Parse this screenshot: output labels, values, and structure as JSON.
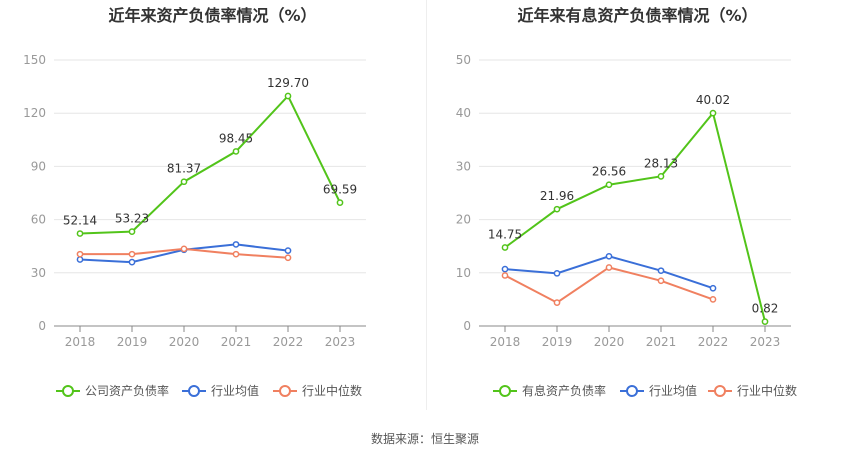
{
  "footer": "数据来源：恒生聚源",
  "colors": {
    "main": "#52c41a",
    "avg": "#3a6fd8",
    "median": "#f08060",
    "grid": "#e6e6e6",
    "axis": "#999999",
    "label": "#333333"
  },
  "chart_data": [
    {
      "type": "line",
      "title": "近年来资产负债率情况（%）",
      "categories": [
        "2018",
        "2019",
        "2020",
        "2021",
        "2022",
        "2023"
      ],
      "ylim": [
        0,
        150
      ],
      "yticks": [
        0,
        30,
        60,
        90,
        120,
        150
      ],
      "xlabel": "",
      "ylabel": "",
      "series": [
        {
          "name": "公司资产负债率",
          "values": [
            52.14,
            53.23,
            81.37,
            98.45,
            129.7,
            69.59
          ],
          "labels": [
            "52.14",
            "53.23",
            "81.37",
            "98.45",
            "129.70",
            "69.59"
          ],
          "color": "#52c41a"
        },
        {
          "name": "行业均值",
          "values": [
            37.5,
            36.0,
            43.0,
            46.0,
            42.5,
            null
          ],
          "color": "#3a6fd8"
        },
        {
          "name": "行业中位数",
          "values": [
            40.5,
            40.5,
            43.5,
            40.5,
            38.5,
            null
          ],
          "color": "#f08060"
        }
      ],
      "legend": "bottom"
    },
    {
      "type": "line",
      "title": "近年来有息资产负债率情况（%）",
      "categories": [
        "2018",
        "2019",
        "2020",
        "2021",
        "2022",
        "2023"
      ],
      "ylim": [
        0,
        50
      ],
      "yticks": [
        0,
        10,
        20,
        30,
        40,
        50
      ],
      "xlabel": "",
      "ylabel": "",
      "series": [
        {
          "name": "有息资产负债率",
          "values": [
            14.75,
            21.96,
            26.56,
            28.13,
            40.02,
            0.82
          ],
          "labels": [
            "14.75",
            "21.96",
            "26.56",
            "28.13",
            "40.02",
            "0.82"
          ],
          "color": "#52c41a"
        },
        {
          "name": "行业均值",
          "values": [
            10.7,
            9.9,
            13.1,
            10.4,
            7.1,
            null
          ],
          "color": "#3a6fd8"
        },
        {
          "name": "行业中位数",
          "values": [
            9.5,
            4.4,
            11.0,
            8.5,
            5.0,
            null
          ],
          "color": "#f08060"
        }
      ],
      "legend": "bottom"
    }
  ]
}
